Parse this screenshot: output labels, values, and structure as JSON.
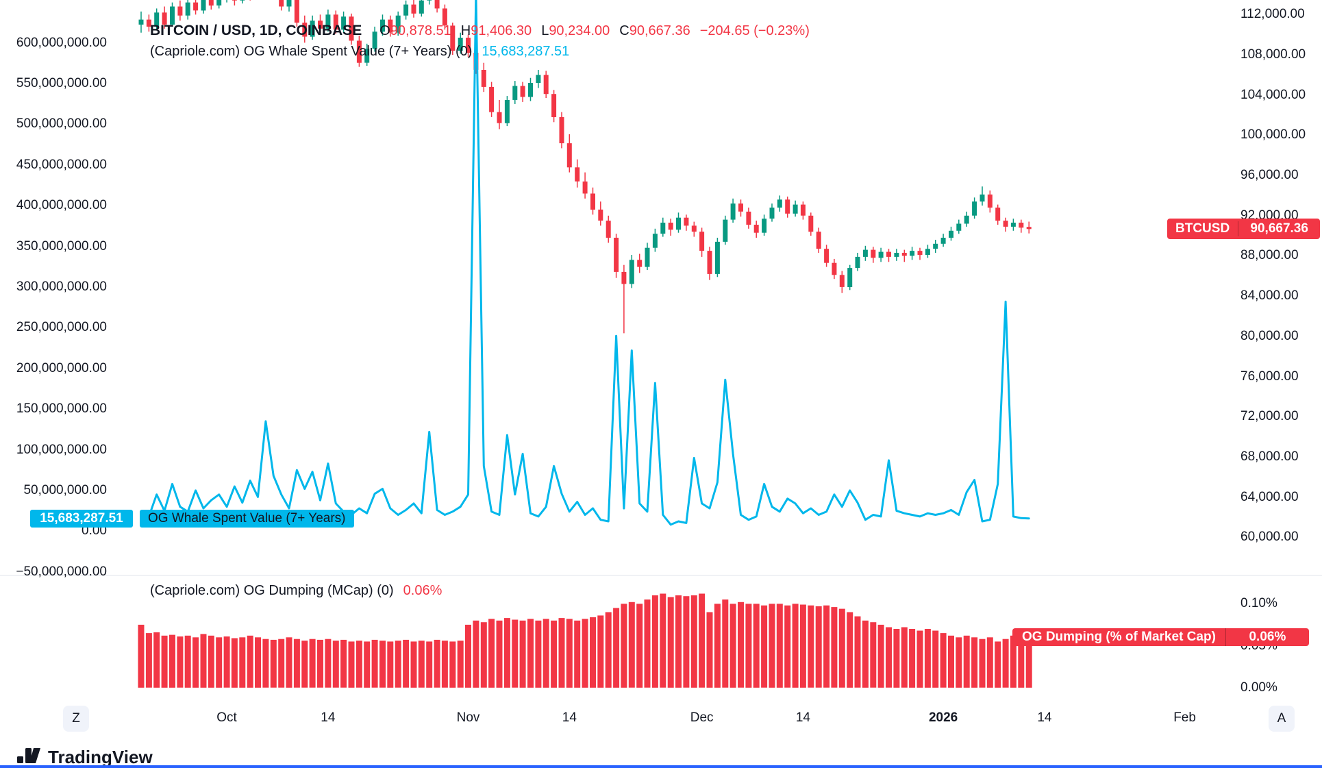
{
  "colors": {
    "up": "#089981",
    "down": "#F23645",
    "blue": "#00B7EB",
    "red": "#F23645",
    "text": "#131722",
    "divider": "#E0E3EB",
    "bottom_accent": "#2962FF"
  },
  "legend": {
    "symbol_title": "BITCOIN / USD, 1D, COINBASE",
    "ohlc": {
      "o_label": "O",
      "o": "90,878.51",
      "h_label": "H",
      "h": "91,406.30",
      "l_label": "L",
      "l": "90,234.00",
      "c_label": "C",
      "c": "90,667.36",
      "change": "−204.65 (−0.23%)"
    },
    "indicator1": {
      "name": "(Capriole.com) OG Whale Spent Value (7+ Years) (0)",
      "value": "15,683,287.51"
    },
    "indicator2": {
      "name": "(Capriole.com) OG Dumping (MCap) (0)",
      "value": "0.06%"
    }
  },
  "badges": {
    "price": {
      "symbol": "BTCUSD",
      "value": "90,667.36"
    },
    "whale": {
      "value": "15,683,287.51",
      "label": "OG Whale Spent Value (7+ Years)"
    },
    "dumping": {
      "label": "OG Dumping (% of Market Cap)",
      "value": "0.06%"
    }
  },
  "toolbar": {
    "timezone_button": "Z",
    "auto_button": "A"
  },
  "footer": {
    "logo_text": "TradingView"
  },
  "axes": {
    "left_ticks": [
      "600,000,000.00",
      "550,000,000.00",
      "500,000,000.00",
      "450,000,000.00",
      "400,000,000.00",
      "350,000,000.00",
      "300,000,000.00",
      "250,000,000.00",
      "200,000,000.00",
      "150,000,000.00",
      "100,000,000.00",
      "50,000,000.00",
      "0.00",
      "−50,000,000.00"
    ],
    "right_ticks": [
      "112,000.00",
      "108,000.00",
      "104,000.00",
      "100,000.00",
      "96,000.00",
      "92,000.00",
      "88,000.00",
      "84,000.00",
      "80,000.00",
      "76,000.00",
      "72,000.00",
      "68,000.00",
      "64,000.00",
      "60,000.00"
    ],
    "percent_ticks": [
      "0.10%",
      "0.05%",
      "0.00%"
    ],
    "percent_tick_values": [
      0.1,
      0.05,
      0.0
    ],
    "time_ticks": [
      {
        "label": "Oct",
        "index": 11
      },
      {
        "label": "14",
        "index": 24
      },
      {
        "label": "Nov",
        "index": 42
      },
      {
        "label": "14",
        "index": 55
      },
      {
        "label": "Dec",
        "index": 72
      },
      {
        "label": "14",
        "index": 85
      },
      {
        "label": "2026",
        "index": 103,
        "bold": true
      },
      {
        "label": "14",
        "index": 116
      },
      {
        "label": "Feb",
        "index": 134
      }
    ]
  },
  "chart_data": [
    {
      "type": "candlestick",
      "name": "BITCOIN / USD, 1D, COINBASE",
      "x_start": "2025-09-20",
      "x_end": "2026-01-12",
      "interval": "1D",
      "y_axis": "right",
      "ylim": [
        60000,
        112000
      ],
      "last": {
        "o": 90878.51,
        "h": 91406.3,
        "l": 90234.0,
        "c": 90667.36,
        "change": -204.65,
        "change_pct": -0.23
      },
      "ohlc": [
        [
          111000,
          112300,
          110200,
          111500
        ],
        [
          111500,
          112000,
          110300,
          110800
        ],
        [
          110800,
          112600,
          110500,
          112200
        ],
        [
          112200,
          112800,
          110600,
          111000
        ],
        [
          111000,
          113200,
          110800,
          112800
        ],
        [
          112800,
          113400,
          111400,
          111900
        ],
        [
          111900,
          113600,
          111500,
          113200
        ],
        [
          113200,
          113800,
          112000,
          112400
        ],
        [
          112400,
          114000,
          112100,
          113600
        ],
        [
          113600,
          114200,
          112500,
          112900
        ],
        [
          112900,
          114300,
          112600,
          113800
        ],
        [
          113800,
          114800,
          113200,
          114200
        ],
        [
          114200,
          114900,
          112900,
          113400
        ],
        [
          113400,
          115000,
          113100,
          114600
        ],
        [
          114600,
          115200,
          113400,
          113800
        ],
        [
          113800,
          115400,
          113500,
          114900
        ],
        [
          114900,
          115500,
          113600,
          113900
        ],
        [
          113900,
          115200,
          113500,
          114500
        ],
        [
          114500,
          114900,
          112400,
          112800
        ],
        [
          112800,
          114400,
          112300,
          113900
        ],
        [
          113900,
          114100,
          110800,
          111200
        ],
        [
          111200,
          111900,
          109200,
          109800
        ],
        [
          109800,
          111900,
          109500,
          111400
        ],
        [
          111400,
          112000,
          110100,
          110600
        ],
        [
          110600,
          112500,
          110300,
          112000
        ],
        [
          112000,
          112400,
          110100,
          110500
        ],
        [
          110500,
          112300,
          110200,
          111800
        ],
        [
          111800,
          112100,
          109000,
          109400
        ],
        [
          109400,
          109900,
          106800,
          107200
        ],
        [
          107200,
          109100,
          106900,
          108600
        ],
        [
          108600,
          110800,
          108300,
          110300
        ],
        [
          110300,
          112000,
          109900,
          111500
        ],
        [
          111500,
          111900,
          109800,
          110200
        ],
        [
          110200,
          112300,
          109900,
          111900
        ],
        [
          111900,
          113400,
          111500,
          113000
        ],
        [
          113000,
          113500,
          111700,
          112100
        ],
        [
          112100,
          113800,
          111800,
          113400
        ],
        [
          113400,
          114500,
          113000,
          114100
        ],
        [
          114100,
          114400,
          112200,
          112600
        ],
        [
          112600,
          113000,
          110500,
          110900
        ],
        [
          110900,
          111200,
          108000,
          108400
        ],
        [
          108400,
          110200,
          108100,
          109700
        ],
        [
          109700,
          110000,
          107800,
          108200
        ],
        [
          108200,
          108800,
          106100,
          106500
        ],
        [
          106500,
          107200,
          104300,
          104800
        ],
        [
          104800,
          105300,
          101800,
          102300
        ],
        [
          102300,
          103500,
          100600,
          101200
        ],
        [
          101200,
          103900,
          100900,
          103500
        ],
        [
          103500,
          105400,
          103100,
          104900
        ],
        [
          104900,
          105300,
          103300,
          103800
        ],
        [
          103800,
          105700,
          103400,
          105200
        ],
        [
          105200,
          106500,
          104700,
          106000
        ],
        [
          106000,
          106400,
          103700,
          104100
        ],
        [
          104100,
          104500,
          101300,
          101800
        ],
        [
          101800,
          102300,
          98700,
          99200
        ],
        [
          99200,
          100100,
          96300,
          96800
        ],
        [
          96800,
          97600,
          94800,
          95400
        ],
        [
          95400,
          96300,
          93700,
          94200
        ],
        [
          94200,
          94800,
          92100,
          92600
        ],
        [
          92600,
          93400,
          91000,
          91500
        ],
        [
          91500,
          92000,
          89300,
          89800
        ],
        [
          89800,
          90200,
          85800,
          86400
        ],
        [
          86400,
          87100,
          80300,
          85200
        ],
        [
          85200,
          88100,
          84800,
          87600
        ],
        [
          87600,
          88200,
          86300,
          86900
        ],
        [
          86900,
          89300,
          86600,
          88800
        ],
        [
          88800,
          90700,
          88400,
          90200
        ],
        [
          90200,
          91800,
          89900,
          91300
        ],
        [
          91300,
          91700,
          90000,
          90600
        ],
        [
          90600,
          92300,
          90300,
          91800
        ],
        [
          91800,
          92100,
          90500,
          91000
        ],
        [
          91000,
          91400,
          89900,
          90400
        ],
        [
          90400,
          90800,
          87900,
          88500
        ],
        [
          88500,
          88900,
          85600,
          86200
        ],
        [
          86200,
          89800,
          85900,
          89400
        ],
        [
          89400,
          92000,
          89100,
          91600
        ],
        [
          91600,
          93700,
          91300,
          93200
        ],
        [
          93200,
          93600,
          91900,
          92400
        ],
        [
          92400,
          92800,
          90700,
          91100
        ],
        [
          91100,
          91500,
          89800,
          90300
        ],
        [
          90300,
          92100,
          90000,
          91700
        ],
        [
          91700,
          93200,
          91400,
          92800
        ],
        [
          92800,
          94000,
          92400,
          93600
        ],
        [
          93600,
          93900,
          91800,
          92200
        ],
        [
          92200,
          93500,
          91900,
          93100
        ],
        [
          93100,
          93400,
          91600,
          92000
        ],
        [
          92000,
          92300,
          90000,
          90400
        ],
        [
          90400,
          90800,
          88300,
          88700
        ],
        [
          88700,
          89100,
          86900,
          87300
        ],
        [
          87300,
          87700,
          85700,
          86100
        ],
        [
          86100,
          86500,
          84300,
          84900
        ],
        [
          84900,
          87100,
          84600,
          86800
        ],
        [
          86800,
          88300,
          86500,
          87900
        ],
        [
          87900,
          89000,
          87500,
          88600
        ],
        [
          88600,
          88900,
          87300,
          87800
        ],
        [
          87800,
          88800,
          87400,
          88400
        ],
        [
          88400,
          88700,
          87400,
          87900
        ],
        [
          87900,
          88700,
          87500,
          88300
        ],
        [
          88300,
          88600,
          87400,
          88000
        ],
        [
          88000,
          88900,
          87600,
          88500
        ],
        [
          88500,
          88800,
          87600,
          88100
        ],
        [
          88100,
          89100,
          87800,
          88700
        ],
        [
          88700,
          89600,
          88300,
          89200
        ],
        [
          89200,
          90200,
          88900,
          89800
        ],
        [
          89800,
          90900,
          89500,
          90500
        ],
        [
          90500,
          91600,
          90200,
          91200
        ],
        [
          91200,
          92400,
          90900,
          92000
        ],
        [
          92000,
          93800,
          91700,
          93400
        ],
        [
          93400,
          94900,
          93000,
          94100
        ],
        [
          94100,
          94500,
          92300,
          92800
        ],
        [
          92800,
          93100,
          91100,
          91500
        ],
        [
          91500,
          91800,
          90400,
          90900
        ],
        [
          90900,
          91700,
          90500,
          91300
        ],
        [
          91300,
          91600,
          90300,
          90800
        ],
        [
          90878.51,
          91406.3,
          90234.0,
          90667.36
        ]
      ]
    },
    {
      "type": "line",
      "name": "(Capriole.com) OG Whale Spent Value (7+ Years)",
      "y_axis": "left",
      "ylim": [
        -50000000,
        600000000
      ],
      "unit": "USD millions",
      "color": "#00B7EB",
      "last_value": 15683287.51,
      "values_millions": [
        22,
        18,
        45,
        25,
        58,
        30,
        24,
        50,
        28,
        38,
        45,
        30,
        55,
        35,
        62,
        42,
        135,
        68,
        45,
        28,
        75,
        52,
        73,
        38,
        83,
        34,
        24,
        20,
        28,
        22,
        46,
        52,
        28,
        20,
        26,
        34,
        22,
        122,
        26,
        20,
        24,
        30,
        45,
        660,
        80,
        24,
        20,
        118,
        45,
        95,
        22,
        18,
        30,
        80,
        46,
        24,
        36,
        20,
        28,
        14,
        12,
        240,
        28,
        222,
        34,
        24,
        182,
        20,
        8,
        12,
        10,
        90,
        34,
        28,
        60,
        186,
        95,
        20,
        14,
        18,
        58,
        30,
        24,
        40,
        34,
        22,
        28,
        20,
        24,
        45,
        30,
        50,
        35,
        14,
        20,
        18,
        87,
        25,
        22,
        20,
        18,
        22,
        20,
        22,
        26,
        20,
        48,
        63,
        12,
        14,
        58,
        282,
        18,
        16,
        15.68
      ]
    },
    {
      "type": "bar",
      "name": "(Capriole.com) OG Dumping (MCap)",
      "pane": "bottom",
      "ylim_pct": [
        0,
        0.1
      ],
      "unit": "% of Market Cap",
      "color": "#F23645",
      "last_value_pct": 0.06,
      "values_pct": [
        0.075,
        0.065,
        0.066,
        0.062,
        0.063,
        0.061,
        0.062,
        0.06,
        0.064,
        0.062,
        0.06,
        0.061,
        0.059,
        0.06,
        0.062,
        0.06,
        0.058,
        0.057,
        0.058,
        0.06,
        0.058,
        0.056,
        0.058,
        0.057,
        0.058,
        0.056,
        0.057,
        0.055,
        0.056,
        0.055,
        0.057,
        0.056,
        0.055,
        0.056,
        0.057,
        0.055,
        0.056,
        0.055,
        0.057,
        0.056,
        0.055,
        0.056,
        0.075,
        0.08,
        0.078,
        0.082,
        0.08,
        0.083,
        0.081,
        0.08,
        0.082,
        0.08,
        0.082,
        0.08,
        0.083,
        0.082,
        0.08,
        0.082,
        0.084,
        0.086,
        0.09,
        0.095,
        0.1,
        0.102,
        0.1,
        0.105,
        0.11,
        0.112,
        0.108,
        0.11,
        0.109,
        0.11,
        0.112,
        0.09,
        0.1,
        0.105,
        0.1,
        0.102,
        0.1,
        0.1,
        0.098,
        0.1,
        0.1,
        0.098,
        0.1,
        0.099,
        0.098,
        0.097,
        0.098,
        0.096,
        0.094,
        0.09,
        0.085,
        0.08,
        0.078,
        0.075,
        0.072,
        0.07,
        0.072,
        0.07,
        0.068,
        0.07,
        0.068,
        0.065,
        0.062,
        0.06,
        0.062,
        0.06,
        0.058,
        0.06,
        0.055,
        0.058,
        0.062,
        0.06,
        0.06
      ]
    }
  ]
}
